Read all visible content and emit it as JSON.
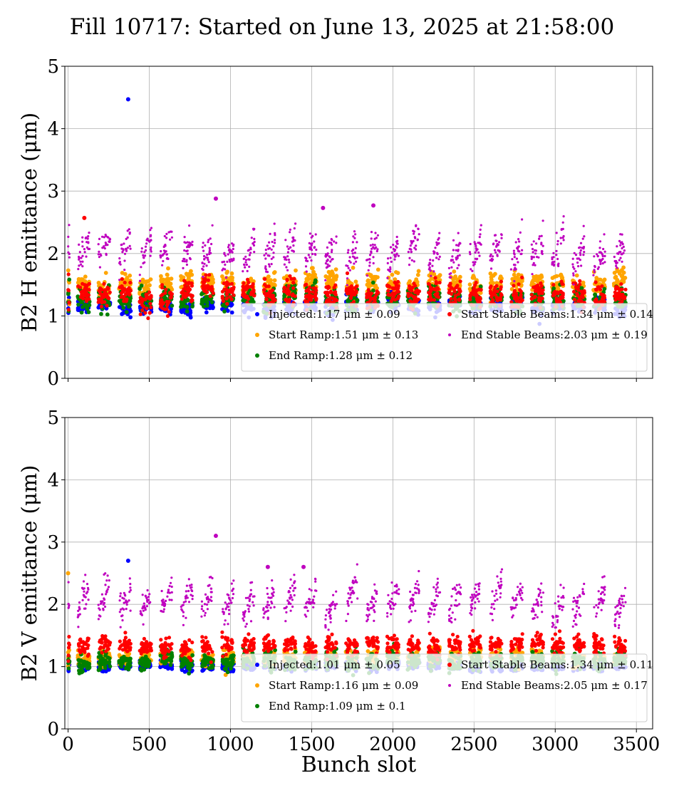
{
  "title": "Fill 10717: Started on June 13, 2025 at 21:58:00",
  "chart_data": [
    {
      "type": "scatter",
      "ylabel": "B2 H emittance (μm)",
      "xlabel": "",
      "xlim": [
        -20,
        3600
      ],
      "ylim": [
        0,
        5
      ],
      "xticks": [
        0,
        500,
        1000,
        1500,
        2000,
        2500,
        3000,
        3500
      ],
      "yticks": [
        0,
        1,
        2,
        3,
        4,
        5
      ],
      "grid": true,
      "legend_position": "lower-right",
      "series": [
        {
          "name": "Injected",
          "mean": 1.17,
          "std": 0.09,
          "color": "#0000ff",
          "legend": "Injected:1.17 μm ± 0.09"
        },
        {
          "name": "Start Ramp",
          "mean": 1.51,
          "std": 0.13,
          "color": "#ffa500",
          "legend": "Start Ramp:1.51 μm ± 0.13"
        },
        {
          "name": "End Ramp",
          "mean": 1.28,
          "std": 0.12,
          "color": "#008000",
          "legend": "End Ramp:1.28 μm ± 0.12"
        },
        {
          "name": "Start Stable Beams",
          "mean": 1.34,
          "std": 0.14,
          "color": "#ff0000",
          "legend": "Start Stable Beams:1.34 μm ± 0.14"
        },
        {
          "name": "End Stable Beams",
          "mean": 2.03,
          "std": 0.19,
          "color": "#bf00bf",
          "legend": "End Stable Beams:2.03 μm ± 0.19"
        }
      ],
      "outliers": [
        {
          "series": "Injected",
          "x": 370,
          "y": 4.47
        },
        {
          "series": "Start Stable Beams",
          "x": 100,
          "y": 2.57
        },
        {
          "series": "End Stable Beams",
          "x": 910,
          "y": 2.88
        },
        {
          "series": "End Stable Beams",
          "x": 1570,
          "y": 2.73
        },
        {
          "series": "End Stable Beams",
          "x": 1880,
          "y": 2.77
        }
      ]
    },
    {
      "type": "scatter",
      "ylabel": "B2 V emittance (μm)",
      "xlabel": "Bunch slot",
      "xlim": [
        -20,
        3600
      ],
      "ylim": [
        0,
        5
      ],
      "xticks": [
        0,
        500,
        1000,
        1500,
        2000,
        2500,
        3000,
        3500
      ],
      "yticks": [
        0,
        1,
        2,
        3,
        4,
        5
      ],
      "grid": true,
      "legend_position": "lower-right",
      "series": [
        {
          "name": "Injected",
          "mean": 1.01,
          "std": 0.05,
          "color": "#0000ff",
          "legend": "Injected:1.01 μm ± 0.05"
        },
        {
          "name": "Start Ramp",
          "mean": 1.16,
          "std": 0.09,
          "color": "#ffa500",
          "legend": "Start Ramp:1.16 μm ± 0.09"
        },
        {
          "name": "End Ramp",
          "mean": 1.09,
          "std": 0.1,
          "color": "#008000",
          "legend": "End Ramp:1.09 μm ± 0.1"
        },
        {
          "name": "Start Stable Beams",
          "mean": 1.34,
          "std": 0.11,
          "color": "#ff0000",
          "legend": "Start Stable Beams:1.34 μm ± 0.11"
        },
        {
          "name": "End Stable Beams",
          "mean": 2.05,
          "std": 0.17,
          "color": "#bf00bf",
          "legend": "End Stable Beams:2.05 μm ± 0.17"
        }
      ],
      "outliers": [
        {
          "series": "Injected",
          "x": 370,
          "y": 2.7
        },
        {
          "series": "Start Ramp",
          "x": 0,
          "y": 2.5
        },
        {
          "series": "End Stable Beams",
          "x": 910,
          "y": 3.1
        },
        {
          "series": "End Stable Beams",
          "x": 1230,
          "y": 2.6
        },
        {
          "series": "End Stable Beams",
          "x": 1450,
          "y": 2.6
        }
      ]
    }
  ]
}
